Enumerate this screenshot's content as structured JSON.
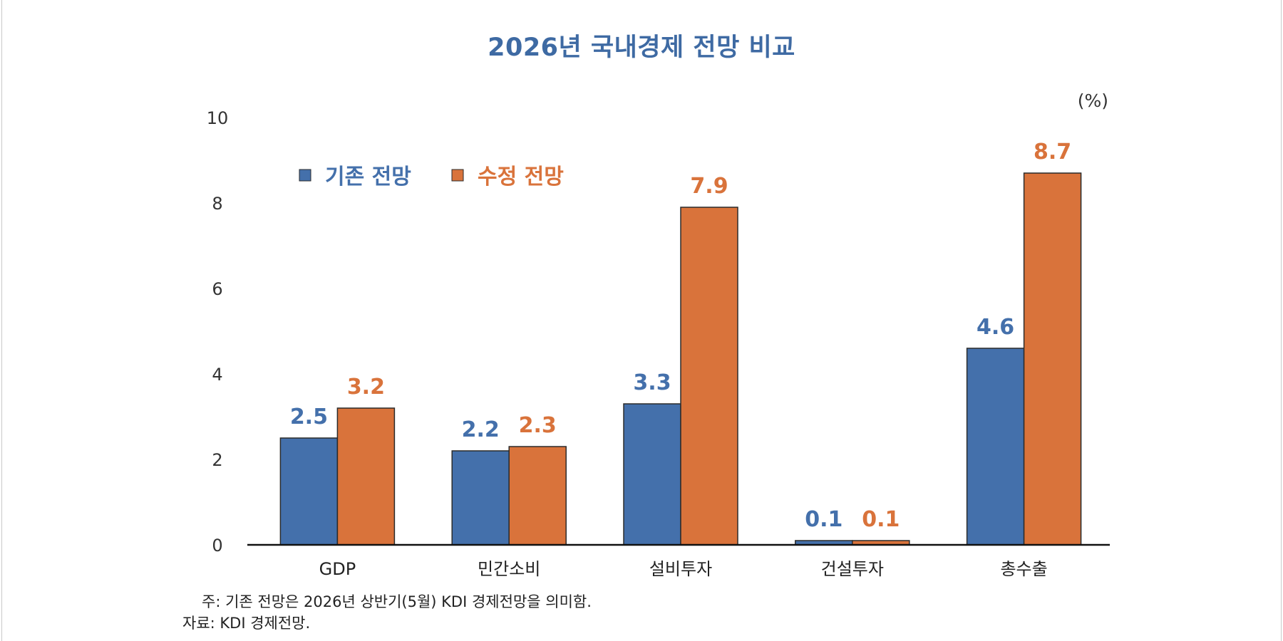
{
  "chart_data": {
    "type": "bar",
    "title": "2026년 국내경제 전망 비교",
    "unit": "(%)",
    "categories": [
      "GDP",
      "민간소비",
      "설비투자",
      "건설투자",
      "총수출"
    ],
    "series": [
      {
        "name": "기존 전망",
        "values": [
          2.5,
          2.2,
          3.3,
          0.1,
          4.6
        ],
        "color": "#4470ab"
      },
      {
        "name": "수정 전망",
        "values": [
          3.2,
          2.3,
          7.9,
          0.1,
          8.7
        ],
        "color": "#d9733b"
      }
    ],
    "ylim": [
      0,
      10
    ],
    "yticks": [
      0,
      2,
      4,
      6,
      8,
      10
    ],
    "grid": false,
    "legend": "top-left",
    "data_labels": true
  },
  "notes": {
    "note": "주: 기존 전망은 2026년 상반기(5월) KDI 경제전망을 의미함.",
    "source": "자료: KDI 경제전망."
  },
  "colors": {
    "title": "#3e6aa3",
    "axis_text": "#333333"
  }
}
